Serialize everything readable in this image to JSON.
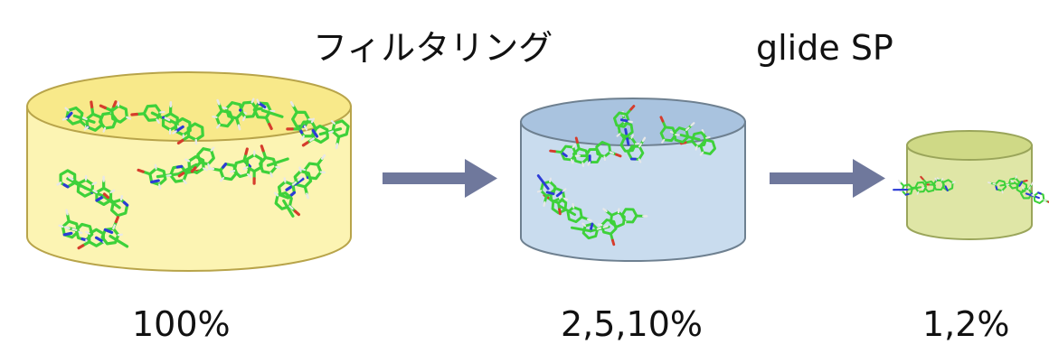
{
  "steps": {
    "filtering": "フィルタリング",
    "docking": "glide SP"
  },
  "databases": [
    {
      "percent_label": "100%",
      "fill": "#fcf4b3",
      "stroke": "#b8a44a",
      "shading": "#f8e98a"
    },
    {
      "percent_label": "2,5,10%",
      "fill": "#c9dcee",
      "stroke": "#6e8090",
      "shading": "#a9c3df"
    },
    {
      "percent_label": "1,2%",
      "fill": "#dfe6a6",
      "stroke": "#9aa55a",
      "shading": "#cfd986"
    }
  ],
  "arrow_color": "#6f789c",
  "molecule_colors": {
    "carbon": "#3ed13a",
    "nitrogen": "#2c3cd6",
    "oxygen": "#d63c2c",
    "sulfur": "#c8b82c",
    "hydrogen": "#e8e8e8"
  }
}
